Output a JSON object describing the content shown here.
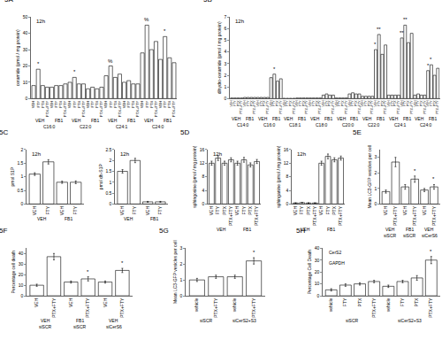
{
  "chart_data": [
    {
      "type": "bar",
      "title": "5A",
      "subtitle": "12h",
      "y_label": "ceramide (pmol / mg protein)",
      "color": "#ffffff",
      "categories": [
        "VEH",
        "FTY",
        "PTX",
        "PTX+FTY",
        "VEH",
        "FTY",
        "PTX",
        "PTX+FTY",
        "VEH",
        "FTY",
        "PTX",
        "PTX+FTY",
        "VEH",
        "FTY",
        "PTX",
        "PTX+FTY",
        "VEH",
        "FTY",
        "PTX",
        "PTX+FTY",
        "VEH",
        "FTY",
        "PTX",
        "PTX+FTY",
        "VEH",
        "FTY",
        "PTX",
        "PTX+FTY",
        "VEH",
        "FTY",
        "PTX",
        "PTX+FTY"
      ],
      "values": [
        8,
        18,
        8,
        7,
        7,
        8,
        8,
        9,
        10,
        13,
        9,
        9,
        6,
        7,
        6,
        7,
        14,
        20,
        13,
        15,
        10,
        11,
        9,
        9,
        28,
        45,
        30,
        35,
        24,
        38,
        25,
        22
      ],
      "group_labels": [
        "VEH",
        "FB1",
        "VEH",
        "FB1",
        "VEH",
        "FB1",
        "VEH",
        "FB1"
      ],
      "group_labels_2": [
        "C16:0",
        "C22:0",
        "C24:1",
        "C24:0"
      ],
      "marks": [
        {
          "index": 1,
          "text": "*"
        },
        {
          "index": 9,
          "text": "*"
        },
        {
          "index": 17,
          "text": "%"
        },
        {
          "index": 25,
          "text": "%"
        },
        {
          "index": 29,
          "text": "*"
        }
      ],
      "ylim": [
        0,
        50
      ],
      "yticks": [
        0,
        10,
        20,
        30,
        40,
        50
      ],
      "grid": false
    },
    {
      "type": "bar",
      "title": "5B",
      "subtitle": "12h",
      "y_label": "dihydro-ceramide (pmol / mg protein)",
      "color": "#ffffff",
      "categories": [
        "VEH",
        "FTY",
        "PTX",
        "PTX+FTY",
        "VEH",
        "FTY",
        "PTX",
        "PTX+FTY",
        "VEH",
        "FTY",
        "PTX",
        "PTX+FTY",
        "VEH",
        "FTY",
        "PTX",
        "PTX+FTY",
        "VEH",
        "FTY",
        "PTX",
        "PTX+FTY",
        "VEH",
        "FTY",
        "PTX",
        "PTX+FTY",
        "VEH",
        "FTY",
        "PTX",
        "PTX+FTY",
        "VEH",
        "FTY",
        "PTX",
        "PTX+FTY",
        "VEH",
        "FTY",
        "PTX",
        "PTX+FTY",
        "VEH",
        "FTY",
        "PTX",
        "PTX+FTY",
        "VEH",
        "FTY",
        "PTX",
        "PTX+FTY",
        "VEH",
        "FTY",
        "PTX",
        "PTX+FTY",
        "VEH",
        "FTY",
        "PTX",
        "PTX+FTY",
        "VEH",
        "FTY",
        "PTX",
        "PTX+FTY",
        "VEH",
        "FTY",
        "PTX",
        "PTX+FTY",
        "VEH",
        "FTY",
        "PTX",
        "PTX+FTY"
      ],
      "values": [
        0.05,
        0.05,
        0.05,
        0.05,
        0.1,
        0.1,
        0.1,
        0.1,
        0.1,
        0.1,
        0.1,
        0.1,
        1.8,
        2.1,
        1.5,
        1.7,
        0.02,
        0.02,
        0.02,
        0.02,
        0.05,
        0.05,
        0.05,
        0.05,
        0.05,
        0.05,
        0.05,
        0.05,
        0.3,
        0.4,
        0.3,
        0.3,
        0.05,
        0.05,
        0.05,
        0.05,
        0.4,
        0.5,
        0.4,
        0.4,
        0.2,
        0.2,
        0.2,
        0.2,
        4.2,
        5.5,
        3.8,
        4.6,
        0.3,
        0.3,
        0.3,
        0.3,
        5.2,
        6.3,
        4.8,
        5.6,
        0.3,
        0.4,
        0.3,
        0.3,
        2.4,
        2.9,
        2.0,
        2.6
      ],
      "group_labels": [
        "VEH",
        "FB1",
        "VEH",
        "FB1",
        "VEH",
        "FB1",
        "VEH",
        "FB1",
        "VEH",
        "FB1",
        "VEH",
        "FB1",
        "VEH",
        "FB1",
        "VEH",
        "FB1"
      ],
      "group_labels_2": [
        "C14:0",
        "C16:0",
        "C18:1",
        "C18:0",
        "C20:0",
        "C22:0",
        "C24:1",
        "C24:0"
      ],
      "marks": [
        {
          "index": 13,
          "text": "*"
        },
        {
          "index": 44,
          "text": "*"
        },
        {
          "index": 45,
          "text": "**"
        },
        {
          "index": 52,
          "text": "**"
        },
        {
          "index": 53,
          "text": "**"
        },
        {
          "index": 60,
          "text": "*"
        },
        {
          "index": 61,
          "text": "*"
        }
      ],
      "ylim": [
        0,
        7
      ],
      "yticks": [
        0,
        1,
        2,
        3,
        4,
        5,
        6,
        7
      ],
      "grid": false
    },
    {
      "type": "bar",
      "title": "5C",
      "subtitle": "12h",
      "y_label": "pmol S1P",
      "color": "#ffffff",
      "categories": [
        "VEH",
        "FTY",
        "VEH",
        "FTY"
      ],
      "values": [
        1.1,
        1.55,
        0.8,
        0.8
      ],
      "errors": [
        0.05,
        0.08,
        0.04,
        0.05
      ],
      "group_labels": [
        "VEH",
        "FB1"
      ],
      "ylim": [
        0,
        2
      ],
      "yticks": [
        0,
        0.5,
        1,
        1.5,
        2
      ],
      "grid": false
    },
    {
      "type": "bar",
      "subtitle": "12h",
      "y_label": "pmol dh-S1P",
      "color": "#ffffff",
      "categories": [
        "VEH",
        "FTY",
        "VEH",
        "FTY"
      ],
      "values": [
        1.5,
        2.0,
        0.1,
        0.1
      ],
      "errors": [
        0.08,
        0.1,
        0.02,
        0.02
      ],
      "group_labels": [
        "VEH",
        "FB1"
      ],
      "ylim": [
        0,
        2.5
      ],
      "yticks": [
        0,
        0.5,
        1,
        1.5,
        2,
        2.5
      ],
      "grid": false
    },
    {
      "type": "bar",
      "title": "5D",
      "subtitle": "12h",
      "y_label": "sphingosine (pmol / mg protein)",
      "color": "#ffffff",
      "categories": [
        "VEH",
        "FTY",
        "PTX",
        "PTX+FTY",
        "VEH",
        "FTY",
        "PTX",
        "PTX+FTY"
      ],
      "values": [
        12,
        13.5,
        12,
        13,
        12,
        13,
        11.5,
        12.5
      ],
      "errors": [
        0.6,
        0.7,
        0.6,
        0.6,
        0.6,
        0.7,
        0.6,
        0.6
      ],
      "group_labels": [
        "VEH",
        "FB1"
      ],
      "ylim": [
        0,
        16
      ],
      "yticks": [
        0,
        4,
        8,
        12,
        16
      ],
      "grid": false
    },
    {
      "type": "bar",
      "subtitle": "12h",
      "y_label": "sphinganine (pmol / mg protein)",
      "color": "#ffffff",
      "categories": [
        "VEH",
        "FTY",
        "PTX",
        "PTX+FTY",
        "VEH",
        "FTY",
        "PTX",
        "PTX+FTY"
      ],
      "values": [
        0.3,
        0.4,
        0.3,
        0.3,
        12,
        14,
        13,
        13.5
      ],
      "errors": [
        0.05,
        0.05,
        0.05,
        0.05,
        0.6,
        0.7,
        0.6,
        0.6
      ],
      "group_labels": [
        "VEH",
        "FB1"
      ],
      "ylim": [
        0,
        16
      ],
      "yticks": [
        0,
        4,
        8,
        12,
        16
      ],
      "grid": false
    },
    {
      "type": "bar",
      "title": "5E",
      "y_label": "Mean LC3-GFP vesicles per cell",
      "color": "#ffffff",
      "categories": [
        "VEH",
        "PTX+FTY",
        "VEH",
        "PTX+FTY",
        "VEH",
        "PTX+FTY"
      ],
      "values": [
        0.8,
        2.7,
        1.1,
        1.6,
        0.9,
        1.1
      ],
      "errors": [
        0.1,
        0.3,
        0.15,
        0.2,
        0.1,
        0.15
      ],
      "group_labels": [
        "VEH",
        "FB1",
        "VEH"
      ],
      "group_labels_2": [
        "siSCR",
        "siSCR",
        "siCerS6"
      ],
      "marks": [
        {
          "index": 3,
          "text": "*"
        },
        {
          "index": 5,
          "text": "*"
        }
      ],
      "ylim": [
        0,
        3.5
      ],
      "yticks": [
        0,
        1,
        2,
        3
      ],
      "grid": false
    },
    {
      "type": "bar",
      "title": "5F",
      "y_label": "Percentage cell death",
      "color": "#ffffff",
      "categories": [
        "VEH",
        "PTX+FTY",
        "VEH",
        "PTX+FTY",
        "VEH",
        "PTX+FTY"
      ],
      "values": [
        10,
        37,
        13,
        16,
        13,
        24
      ],
      "errors": [
        1,
        3,
        1,
        2,
        1,
        2
      ],
      "group_labels": [
        "VEH",
        "FB1",
        "VEH"
      ],
      "group_labels_2": [
        "siSCR",
        "siSCR",
        "siCerS6"
      ],
      "marks": [
        {
          "index": 3,
          "text": "*"
        },
        {
          "index": 5,
          "text": "*"
        }
      ],
      "ylim": [
        0,
        45
      ],
      "yticks": [
        0,
        10,
        20,
        30,
        40
      ],
      "grid": false
    },
    {
      "type": "bar",
      "title": "5G",
      "y_label": "Mean LC3-GFP vesicles per cell",
      "color": "#ffffff",
      "categories": [
        "vehicle",
        "PTX+FTY",
        "vehicle",
        "PTX+FTY"
      ],
      "values": [
        1.0,
        1.2,
        1.2,
        2.2
      ],
      "errors": [
        0.1,
        0.1,
        0.1,
        0.2
      ],
      "group_labels": [
        "siSCR",
        "siCerS2+S3"
      ],
      "marks": [
        {
          "index": 3,
          "text": "*"
        }
      ],
      "ylim": [
        0,
        3
      ],
      "yticks": [
        0,
        1,
        2,
        3
      ],
      "grid": false
    },
    {
      "type": "bar",
      "title": "5H",
      "y_label": "Percentage Cell Death",
      "color": "#ffffff",
      "categories": [
        "vehicle",
        "FTY",
        "PTX",
        "PTX+FTY",
        "vehicle",
        "FTY",
        "PTX",
        "PTX+FTY"
      ],
      "values": [
        5,
        9,
        10,
        12,
        8,
        12,
        15,
        30
      ],
      "errors": [
        1,
        1,
        1,
        1,
        1,
        1,
        2,
        3
      ],
      "group_labels": [
        "siSCR",
        "siCerS2+S3"
      ],
      "marks": [
        {
          "index": 7,
          "text": "*"
        }
      ],
      "inset_labels": [
        "CerS2",
        "GAPDH"
      ],
      "ylim": [
        0,
        40
      ],
      "yticks": [
        0,
        10,
        20,
        30,
        40
      ],
      "grid": false
    }
  ]
}
